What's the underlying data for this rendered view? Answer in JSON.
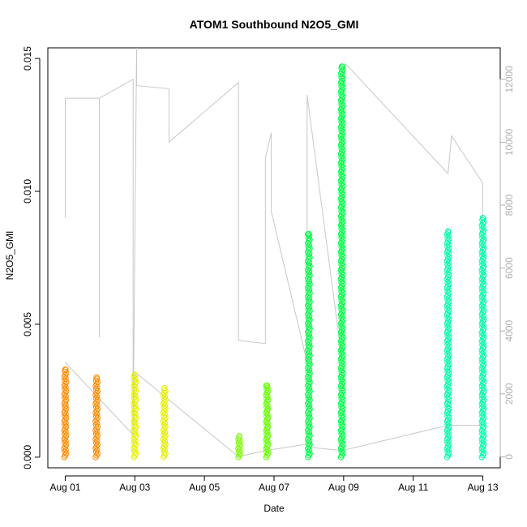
{
  "chart_data": {
    "type": "scatter",
    "title": "ATOM1 Southbound N2O5_GMI",
    "xlabel": "Date",
    "ylabel": "N2O5_GMI",
    "x_unit": "days in August",
    "xlim": [
      0.5,
      13.5
    ],
    "ylim": [
      -0.0004,
      0.0154
    ],
    "y2lim": [
      -350,
      13000
    ],
    "x_ticks": [
      1,
      3,
      5,
      7,
      9,
      11,
      13
    ],
    "x_tick_labels": [
      "Aug 01",
      "Aug 03",
      "Aug 05",
      "Aug 07",
      "Aug 09",
      "Aug 11",
      "Aug 13"
    ],
    "y_ticks": [
      0,
      0.005,
      0.01,
      0.015
    ],
    "y_tick_labels": [
      "0.000",
      "0.005",
      "0.010",
      "0.015"
    ],
    "y2_ticks": [
      0,
      2000,
      4000,
      6000,
      8000,
      10000,
      12000
    ],
    "y2_tick_labels": [
      "0",
      "2000",
      "4000",
      "6000",
      "8000",
      "10000",
      "12000"
    ],
    "grid": false,
    "colors": {
      "secondary_line": "#c8c8c8",
      "right_axis": "#b0b0b0"
    },
    "point_groups": [
      {
        "color": "#ff8c00",
        "x": 1.0,
        "y_min": 0.0,
        "y_max": 0.0033
      },
      {
        "color": "#ff8c00",
        "x": 1.9,
        "y_min": 0.0,
        "y_max": 0.003
      },
      {
        "color": "#e5f000",
        "x": 3.0,
        "y_min": 0.0,
        "y_max": 0.0031
      },
      {
        "color": "#e5f000",
        "x": 3.85,
        "y_min": 0.0,
        "y_max": 0.0026
      },
      {
        "color": "#7cfc00",
        "x": 6.0,
        "y_min": 0.0,
        "y_max": 0.0008
      },
      {
        "color": "#66ff00",
        "x": 6.8,
        "y_min": 0.0,
        "y_max": 0.0027
      },
      {
        "color": "#00ff44",
        "x": 8.0,
        "y_min": 0.0,
        "y_max": 0.0084
      },
      {
        "color": "#00ff44",
        "x": 8.95,
        "y_min": 0.0,
        "y_max": 0.0147
      },
      {
        "color": "#00ffaa",
        "x": 12.0,
        "y_min": 0.0,
        "y_max": 0.0085
      },
      {
        "color": "#00ffaa",
        "x": 13.0,
        "y_min": 0.0,
        "y_max": 0.009
      }
    ],
    "secondary_series": {
      "name": "",
      "axis": "right",
      "points": [
        [
          1.0,
          7600
        ],
        [
          1.0,
          11400
        ],
        [
          1.98,
          11400
        ],
        [
          1.98,
          3800
        ],
        [
          1.98,
          11400
        ],
        [
          2.95,
          12000
        ],
        [
          2.95,
          800
        ],
        [
          3.05,
          13000
        ],
        [
          3.05,
          11800
        ],
        [
          3.98,
          11700
        ],
        [
          3.98,
          11000
        ],
        [
          3.98,
          10000
        ],
        [
          5.98,
          11900
        ],
        [
          5.98,
          3700
        ],
        [
          6.75,
          3600
        ],
        [
          6.75,
          9500
        ],
        [
          6.92,
          10300
        ],
        [
          6.92,
          7800
        ],
        [
          7.95,
          3000
        ],
        [
          7.95,
          11500
        ],
        [
          8.95,
          3100
        ],
        [
          8.95,
          11000
        ],
        [
          9.05,
          12500
        ],
        [
          12.0,
          9000
        ],
        [
          12.1,
          10200
        ],
        [
          13.0,
          8700
        ],
        [
          13.0,
          1700
        ]
      ],
      "connectors": [
        [
          1.0,
          3000
        ],
        [
          2.95,
          700
        ],
        [
          3.0,
          2700
        ],
        [
          5.98,
          0
        ],
        [
          6.75,
          200
        ],
        [
          7.95,
          400
        ],
        [
          8.05,
          300
        ],
        [
          8.95,
          200
        ],
        [
          12.0,
          1000
        ],
        [
          13.0,
          1000
        ]
      ]
    }
  }
}
